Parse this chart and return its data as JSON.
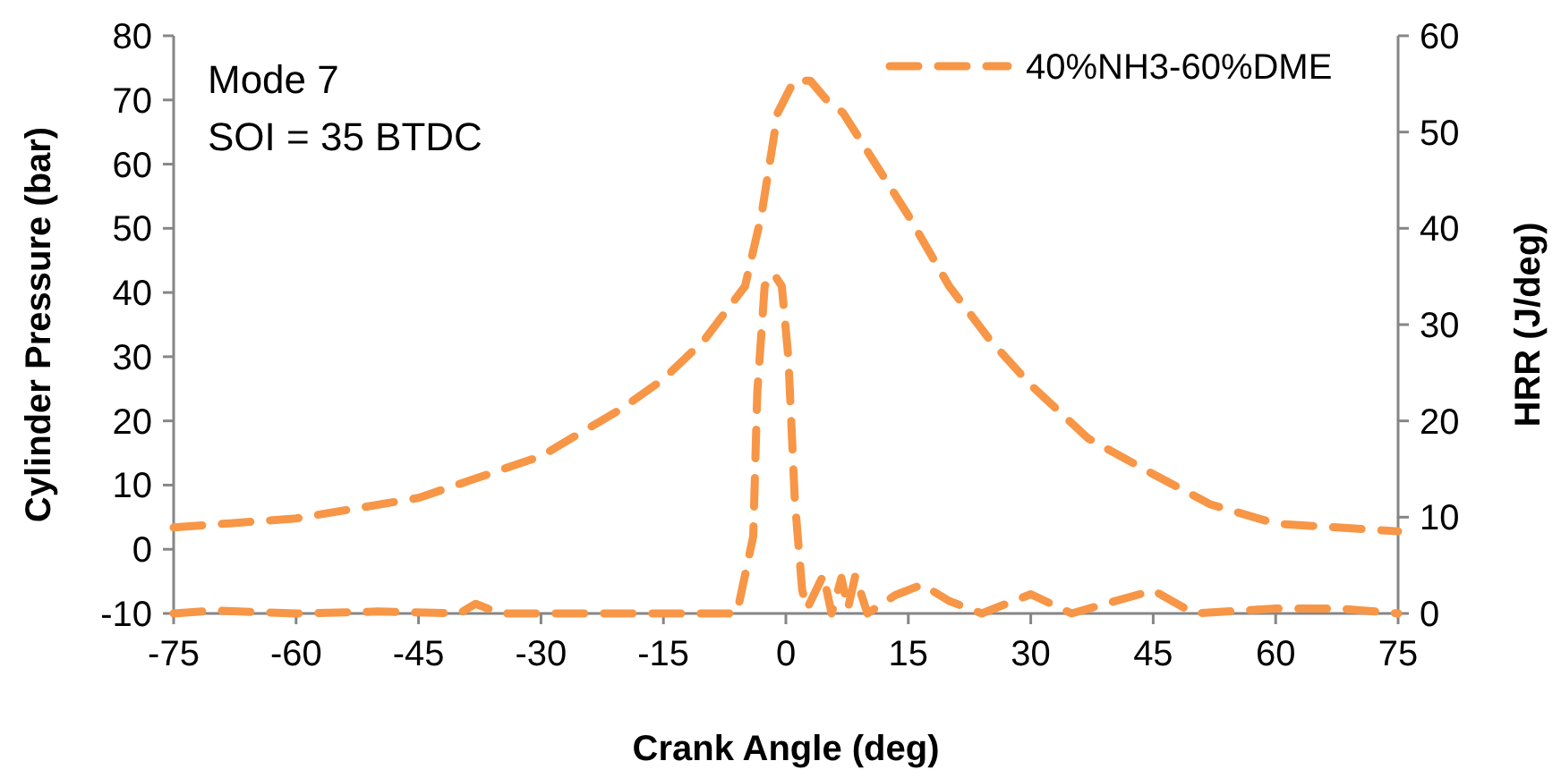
{
  "chart_data": {
    "type": "line",
    "xlabel": "Crank Angle (deg)",
    "ylabel": "Cylinder Pressure (bar)",
    "y2label": "HRR (J/deg)",
    "annotations": [
      "Mode 7",
      "SOI = 35 BTDC"
    ],
    "xlim": [
      -75,
      75
    ],
    "xticks": [
      -75,
      -60,
      -45,
      -30,
      -15,
      0,
      15,
      30,
      45,
      60,
      75
    ],
    "ylim": [
      -10,
      80
    ],
    "yticks": [
      -10,
      0,
      10,
      20,
      30,
      40,
      50,
      60,
      70,
      80
    ],
    "y2lim": [
      0,
      60
    ],
    "y2ticks": [
      0,
      10,
      20,
      30,
      40,
      50,
      60
    ],
    "legend": "top right",
    "line_style": "dashed",
    "grid": false,
    "series": [
      {
        "name": "40%NH3-60%DME",
        "color": "#f79646",
        "x": [
          -75,
          -60,
          -45,
          -30,
          -20,
          -15,
          -10,
          -5,
          -3,
          -1,
          1,
          3,
          5,
          7,
          10,
          15,
          20,
          25,
          30,
          37,
          45,
          52,
          60,
          75
        ],
        "values": [
          3.4,
          4.8,
          8,
          14.5,
          22,
          26.5,
          32.6,
          41,
          52,
          68,
          73,
          73,
          70,
          68,
          62,
          52,
          41,
          32.6,
          25.6,
          17.3,
          11.7,
          7,
          4,
          2.8
        ]
      },
      {
        "color": "#f79646",
        "axis": "y2",
        "x": [
          -75,
          -70,
          -60,
          -50,
          -40,
          -38,
          -35,
          -30,
          -20,
          -8,
          -6,
          -4,
          -3.5,
          -2.6,
          -1.5,
          -0.5,
          0.3,
          1.1,
          2,
          2.6,
          4.6,
          5.6,
          6.8,
          7.6,
          8.5,
          10,
          13.4,
          16.7,
          20,
          24,
          30,
          35,
          45,
          50,
          60,
          68,
          75
        ],
        "values": [
          0,
          0.3,
          0,
          0.2,
          0,
          1,
          0,
          0,
          0,
          0,
          0,
          8,
          23,
          34,
          35.3,
          34,
          26.6,
          11.7,
          2.4,
          0.5,
          4,
          0,
          3.7,
          0.5,
          3.9,
          0,
          1.9,
          3,
          1.3,
          0,
          2,
          0,
          2.4,
          0,
          0.5,
          0.5,
          0
        ]
      }
    ]
  }
}
